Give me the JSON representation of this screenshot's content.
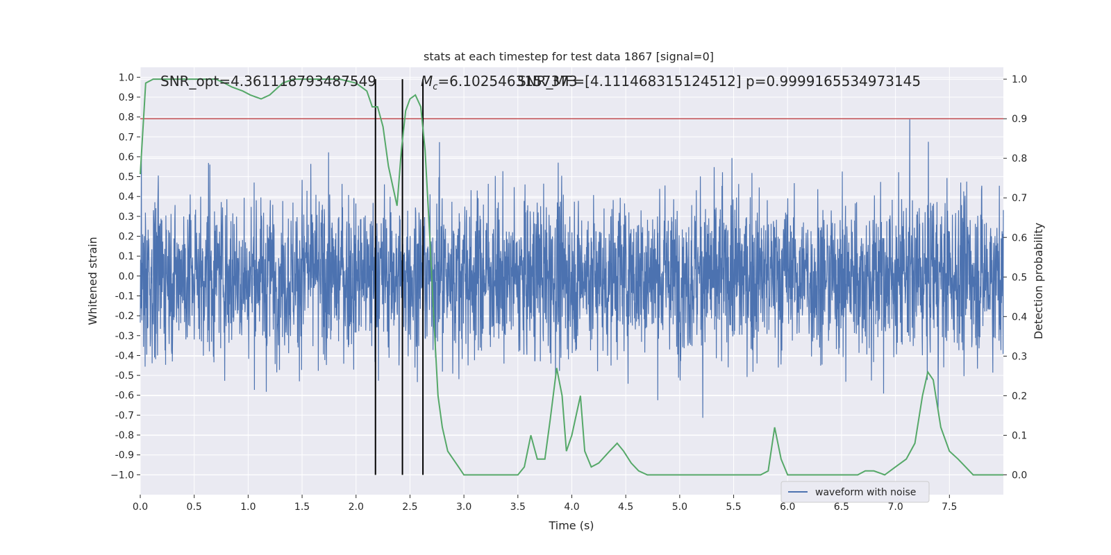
{
  "chart_data": {
    "type": "line",
    "title": "stats at each timestep for test data 1867 [signal=0]",
    "xlabel": "Time (s)",
    "ylabel_left": "Whitened strain",
    "ylabel_right": "Detection probability",
    "xlim": [
      0,
      8
    ],
    "ylim_left": [
      -1.1,
      1.05
    ],
    "ylim_right": [
      -0.05,
      1.03
    ],
    "x_ticks": [
      "0.0",
      "0.5",
      "1.0",
      "1.5",
      "2.0",
      "2.5",
      "3.0",
      "3.5",
      "4.0",
      "4.5",
      "5.0",
      "5.5",
      "6.0",
      "6.5",
      "7.0",
      "7.5"
    ],
    "y_ticks_left": [
      "1.0",
      "0.9",
      "0.8",
      "0.7",
      "0.6",
      "0.5",
      "0.4",
      "0.3",
      "0.2",
      "0.1",
      "0.0",
      "-0.1",
      "-0.2",
      "-0.3",
      "-0.4",
      "-0.5",
      "-0.6",
      "-0.7",
      "-0.8",
      "-0.9",
      "−1.0"
    ],
    "y_ticks_right": [
      "1.0",
      "0.9",
      "0.8",
      "0.7",
      "0.6",
      "0.5",
      "0.4",
      "0.3",
      "0.2",
      "0.1",
      "0.0"
    ],
    "grid": true,
    "annotations": {
      "snr_opt": "SNR_opt=4.361118793487549",
      "mc_symbol": "M",
      "mc_sub": "c",
      "mc_value": "=6.1025463157373",
      "snr_mf": "SNR_MF=[4.111468315124512]",
      "p_value": "p=0.9999165534973145"
    },
    "threshold_line": {
      "value": 0.9,
      "axis": "right",
      "color": "#c44e52"
    },
    "vertical_lines_x": [
      2.18,
      2.43,
      2.62
    ],
    "waveform": {
      "name": "waveform with noise",
      "color": "#4c72b0",
      "typical_amplitude": 0.45,
      "x_range": [
        0,
        8
      ]
    },
    "detection_probability": {
      "color": "#55a868",
      "x": [
        0.0,
        0.05,
        0.12,
        0.2,
        0.3,
        0.45,
        0.6,
        0.7,
        0.78,
        0.85,
        0.95,
        1.02,
        1.12,
        1.2,
        1.32,
        1.42,
        1.55,
        1.7,
        1.85,
        2.0,
        2.1,
        2.15,
        2.2,
        2.25,
        2.3,
        2.34,
        2.38,
        2.42,
        2.46,
        2.5,
        2.55,
        2.6,
        2.64,
        2.68,
        2.72,
        2.76,
        2.8,
        2.85,
        2.9,
        2.95,
        3.0,
        3.1,
        3.25,
        3.4,
        3.5,
        3.56,
        3.62,
        3.68,
        3.75,
        3.8,
        3.86,
        3.91,
        3.95,
        4.0,
        4.08,
        4.12,
        4.18,
        4.25,
        4.35,
        4.42,
        4.48,
        4.55,
        4.62,
        4.7,
        4.78,
        4.85,
        4.9,
        5.0,
        5.2,
        5.5,
        5.75,
        5.82,
        5.88,
        5.94,
        6.0,
        6.1,
        6.2,
        6.35,
        6.45,
        6.55,
        6.65,
        6.72,
        6.8,
        6.9,
        7.0,
        7.1,
        7.18,
        7.25,
        7.3,
        7.35,
        7.42,
        7.5,
        7.58,
        7.65,
        7.72,
        7.8,
        8.0
      ],
      "y": [
        0.76,
        0.99,
        1.0,
        1.0,
        1.0,
        1.0,
        1.0,
        1.0,
        0.99,
        0.98,
        0.97,
        0.96,
        0.95,
        0.96,
        0.99,
        1.0,
        1.0,
        1.0,
        1.0,
        0.99,
        0.97,
        0.93,
        0.93,
        0.88,
        0.78,
        0.73,
        0.68,
        0.82,
        0.92,
        0.95,
        0.96,
        0.93,
        0.82,
        0.62,
        0.4,
        0.2,
        0.12,
        0.06,
        0.04,
        0.02,
        0.0,
        0.0,
        0.0,
        0.0,
        0.0,
        0.02,
        0.1,
        0.04,
        0.04,
        0.14,
        0.27,
        0.2,
        0.06,
        0.1,
        0.2,
        0.06,
        0.02,
        0.03,
        0.06,
        0.08,
        0.06,
        0.03,
        0.01,
        0.0,
        0.0,
        0.0,
        0.0,
        0.0,
        0.0,
        0.0,
        0.0,
        0.01,
        0.12,
        0.04,
        0.0,
        0.0,
        0.0,
        0.0,
        0.0,
        0.0,
        0.0,
        0.01,
        0.01,
        0.0,
        0.02,
        0.04,
        0.08,
        0.2,
        0.26,
        0.24,
        0.12,
        0.06,
        0.04,
        0.02,
        0.0,
        0.0,
        0.0
      ]
    },
    "legend": {
      "position": "lower-center-right"
    }
  }
}
